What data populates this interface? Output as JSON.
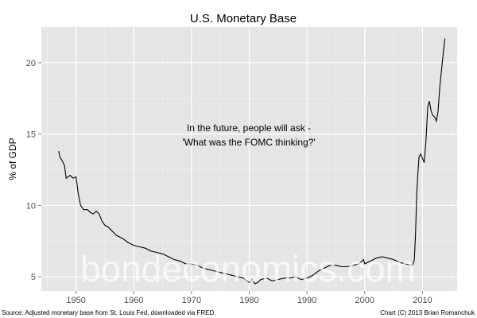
{
  "chart_data": {
    "type": "line",
    "title": "U.S. Monetary Base",
    "xlabel": "",
    "ylabel": "% of GDP",
    "xlim": [
      1944,
      2016
    ],
    "ylim": [
      4,
      22.5
    ],
    "xticks": [
      1950,
      1960,
      1970,
      1980,
      1990,
      2000,
      2010
    ],
    "yticks": [
      5,
      10,
      15,
      20
    ],
    "grid": true,
    "annotation": [
      "In the future, people will ask -",
      "'What was the FOMC thinking?'"
    ],
    "watermark": "bondeconomics.com",
    "source": "Source: Adjusted monetary base from St. Louis Fed, downloaded via FRED.",
    "credit": "Chart (C) 2013 Brian Romanchuk",
    "series": [
      {
        "name": "Monetary Base % of GDP",
        "x": [
          1947,
          1947.2,
          1947.5,
          1948,
          1948.3,
          1948.6,
          1949,
          1949.5,
          1950,
          1950.4,
          1950.8,
          1951.3,
          1952,
          1952.5,
          1953,
          1953.5,
          1954,
          1954.5,
          1955,
          1955.5,
          1956,
          1957,
          1958,
          1959,
          1960,
          1961,
          1962,
          1963,
          1964,
          1965,
          1966,
          1967,
          1968,
          1969,
          1970,
          1971,
          1972,
          1973,
          1974,
          1975,
          1976,
          1977,
          1978,
          1979,
          1980,
          1980.5,
          1981,
          1981.5,
          1982,
          1983,
          1984,
          1985,
          1986,
          1987,
          1988,
          1989,
          1990,
          1991,
          1992,
          1993,
          1994,
          1995,
          1996,
          1997,
          1998,
          1999,
          1999.8,
          2000,
          2001,
          2002,
          2003,
          2004,
          2005,
          2006,
          2007,
          2008.3,
          2008.6,
          2008.8,
          2009,
          2009.2,
          2009.4,
          2009.7,
          2010,
          2010.3,
          2010.6,
          2010.9,
          2011.2,
          2011.5,
          2011.8,
          2012.1,
          2012.4,
          2012.7,
          2013,
          2013.3,
          2013.6,
          2013.9
        ],
        "values": [
          13.8,
          13.4,
          13.2,
          12.8,
          11.9,
          12.0,
          12.1,
          11.9,
          12.0,
          10.8,
          10.0,
          9.7,
          9.7,
          9.5,
          9.4,
          9.6,
          9.4,
          8.9,
          8.6,
          8.5,
          8.3,
          7.9,
          7.7,
          7.4,
          7.2,
          7.1,
          7.0,
          6.8,
          6.7,
          6.6,
          6.4,
          6.2,
          6.1,
          5.9,
          5.9,
          5.8,
          5.6,
          5.5,
          5.4,
          5.3,
          5.2,
          5.1,
          5.0,
          4.9,
          4.6,
          4.8,
          4.5,
          4.6,
          4.8,
          4.9,
          4.7,
          4.8,
          4.9,
          4.9,
          5.0,
          4.8,
          4.9,
          5.1,
          5.4,
          5.6,
          5.8,
          5.8,
          5.7,
          5.7,
          5.8,
          5.9,
          6.2,
          5.9,
          6.1,
          6.3,
          6.4,
          6.3,
          6.2,
          6.0,
          5.9,
          5.8,
          6.2,
          8.0,
          10.8,
          12.2,
          13.4,
          13.6,
          13.3,
          13.0,
          14.5,
          16.9,
          17.3,
          16.6,
          16.3,
          16.2,
          15.9,
          16.6,
          18.3,
          19.5,
          20.7,
          21.7
        ]
      }
    ]
  }
}
